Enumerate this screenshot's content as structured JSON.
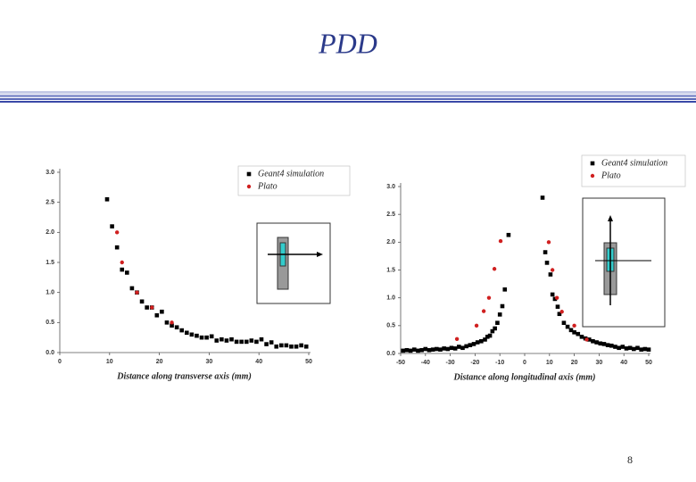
{
  "title": "PDD",
  "page_number": "8",
  "chart_data": [
    {
      "type": "scatter",
      "xlabel": "Distance along transverse axis (mm)",
      "xlim": [
        0,
        50
      ],
      "xticks": [
        0,
        10,
        20,
        30,
        40,
        50
      ],
      "ylim": [
        0,
        3.0
      ],
      "yticks": [
        {
          "value": 0,
          "label": "0.0"
        },
        0.5,
        {
          "value": 1,
          "label": "1.0"
        },
        1.5,
        {
          "value": 2,
          "label": "2.0"
        },
        2.5,
        {
          "value": 3,
          "label": "3.0"
        }
      ],
      "series": [
        {
          "name": "Geant4 simulation",
          "color": "#000000",
          "marker": "square",
          "x": [
            9.5,
            10.5,
            11.5,
            12.5,
            13.5,
            14.5,
            15.5,
            16.5,
            17.5,
            18.5,
            19.5,
            20.5,
            21.5,
            22.5,
            23.5,
            24.5,
            25.5,
            26.5,
            27.5,
            28.5,
            29.5,
            30.5,
            31.5,
            32.5,
            33.5,
            34.5,
            35.5,
            36.5,
            37.5,
            38.5,
            39.5,
            40.5,
            41.5,
            42.5,
            43.5,
            44.5,
            45.5,
            46.5,
            47.5,
            48.5,
            49.5
          ],
          "values": [
            2.55,
            2.1,
            1.75,
            1.38,
            1.33,
            1.07,
            1.0,
            0.85,
            0.75,
            0.75,
            0.62,
            0.68,
            0.5,
            0.45,
            0.42,
            0.37,
            0.33,
            0.3,
            0.28,
            0.25,
            0.25,
            0.27,
            0.2,
            0.22,
            0.2,
            0.22,
            0.18,
            0.18,
            0.18,
            0.2,
            0.18,
            0.22,
            0.14,
            0.17,
            0.1,
            0.12,
            0.12,
            0.1,
            0.1,
            0.12,
            0.1
          ]
        },
        {
          "name": "Plato",
          "color": "#d02020",
          "marker": "circle",
          "x": [
            11.5,
            12.5,
            15.5,
            18.5,
            22.5
          ],
          "values": [
            2.0,
            1.5,
            1.0,
            0.75,
            0.5
          ]
        }
      ]
    },
    {
      "type": "scatter",
      "xlabel": "Distance along longitudinal axis (mm)",
      "xlim": [
        -50,
        50
      ],
      "xticks": [
        -50,
        -40,
        -30,
        -20,
        -10,
        0,
        10,
        20,
        30,
        40,
        50
      ],
      "ylim": [
        0,
        3.0
      ],
      "yticks": [
        {
          "value": 0,
          "label": "0.0"
        },
        0.5,
        {
          "value": 1,
          "label": "1.0"
        },
        1.5,
        {
          "value": 2,
          "label": "2.0"
        },
        2.5,
        {
          "value": 3,
          "label": "3.0"
        }
      ],
      "series": [
        {
          "name": "Geant4 simulation",
          "color": "#000000",
          "marker": "square",
          "x": [
            -49,
            -47.5,
            -46,
            -44.5,
            -43,
            -41.5,
            -40,
            -38.5,
            -37,
            -35.5,
            -34,
            -32.5,
            -31,
            -29.5,
            -28,
            -26.5,
            -25,
            -23.5,
            -22,
            -20.5,
            -19,
            -17.5,
            -16,
            -15,
            -14,
            -13,
            -12,
            -11,
            -10,
            -9,
            -8,
            -6.5,
            7.2,
            8.3,
            9,
            10.4,
            11.2,
            12.2,
            13.3,
            14,
            15.8,
            17.3,
            18.7,
            20,
            21.5,
            23,
            24.5,
            26,
            27.5,
            29,
            30.5,
            32,
            33.5,
            35,
            36.5,
            38,
            39.5,
            41,
            42.5,
            44,
            45.5,
            47,
            48.5,
            50
          ],
          "values": [
            0.05,
            0.06,
            0.05,
            0.07,
            0.05,
            0.06,
            0.08,
            0.06,
            0.07,
            0.08,
            0.07,
            0.09,
            0.08,
            0.1,
            0.09,
            0.12,
            0.1,
            0.13,
            0.15,
            0.17,
            0.2,
            0.22,
            0.25,
            0.3,
            0.32,
            0.4,
            0.45,
            0.55,
            0.7,
            0.85,
            1.15,
            2.13,
            2.8,
            1.82,
            1.63,
            1.42,
            1.06,
            0.98,
            0.84,
            0.71,
            0.55,
            0.48,
            0.42,
            0.38,
            0.35,
            0.3,
            0.27,
            0.25,
            0.22,
            0.2,
            0.18,
            0.17,
            0.15,
            0.14,
            0.12,
            0.1,
            0.12,
            0.09,
            0.1,
            0.08,
            0.1,
            0.07,
            0.08,
            0.07
          ]
        },
        {
          "name": "Plato",
          "color": "#d02020",
          "marker": "circle",
          "x": [
            -27.3,
            -19.4,
            -16.5,
            -14.4,
            -12.2,
            -9.7,
            9.7,
            11.2,
            13,
            15,
            20,
            25
          ],
          "values": [
            0.26,
            0.5,
            0.76,
            1.0,
            1.52,
            2.02,
            2.0,
            1.5,
            1.0,
            0.75,
            0.5,
            0.25
          ]
        }
      ]
    }
  ]
}
